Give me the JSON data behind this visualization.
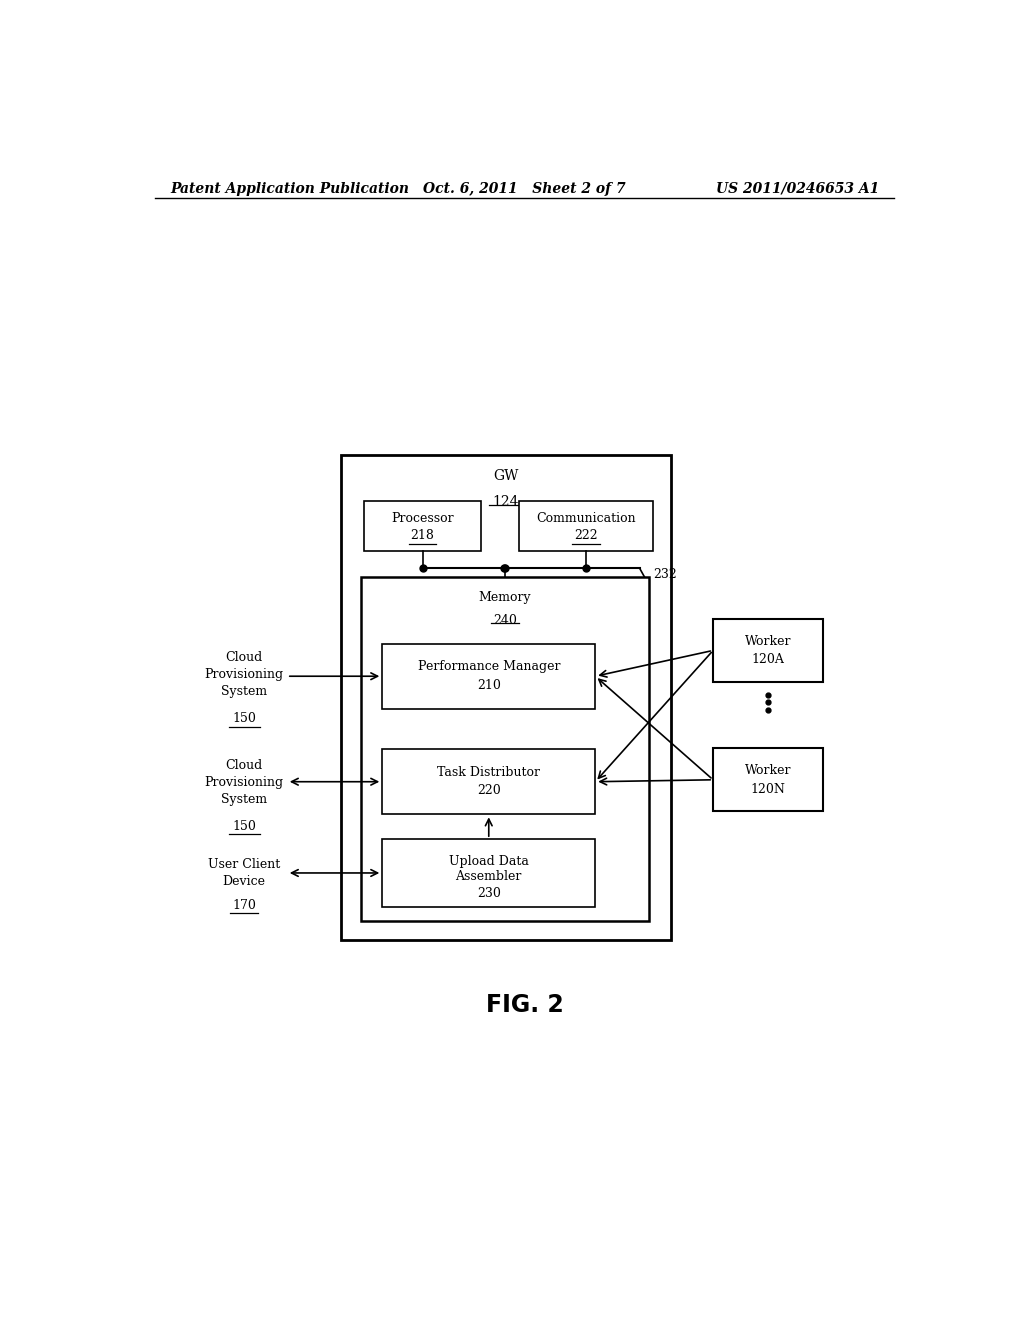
{
  "background_color": "#ffffff",
  "header_left": "Patent Application Publication",
  "header_mid": "Oct. 6, 2011   Sheet 2 of 7",
  "header_right": "US 2011/0246653 A1",
  "fig_label": "FIG. 2",
  "gw_label": "GW",
  "gw_num": "124",
  "processor_label": "Processor",
  "processor_num": "218",
  "comm_label": "Communication",
  "comm_num": "222",
  "memory_label": "Memory",
  "memory_num": "240",
  "bus_num": "232",
  "perf_label": "Performance Manager",
  "perf_num": "210",
  "task_label": "Task Distributor",
  "task_num": "220",
  "upload_line1": "Upload Data",
  "upload_line2": "Assembler",
  "upload_num": "230",
  "cloud1_label": "Cloud\nProvisioning\nSystem",
  "cloud1_num": "150",
  "cloud2_label": "Cloud\nProvisioning\nSystem",
  "cloud2_num": "150",
  "user_label": "User Client\nDevice",
  "user_num": "170",
  "workerA_label": "Worker",
  "workerA_num": "120A",
  "workerN_label": "Worker",
  "workerN_num": "120N"
}
